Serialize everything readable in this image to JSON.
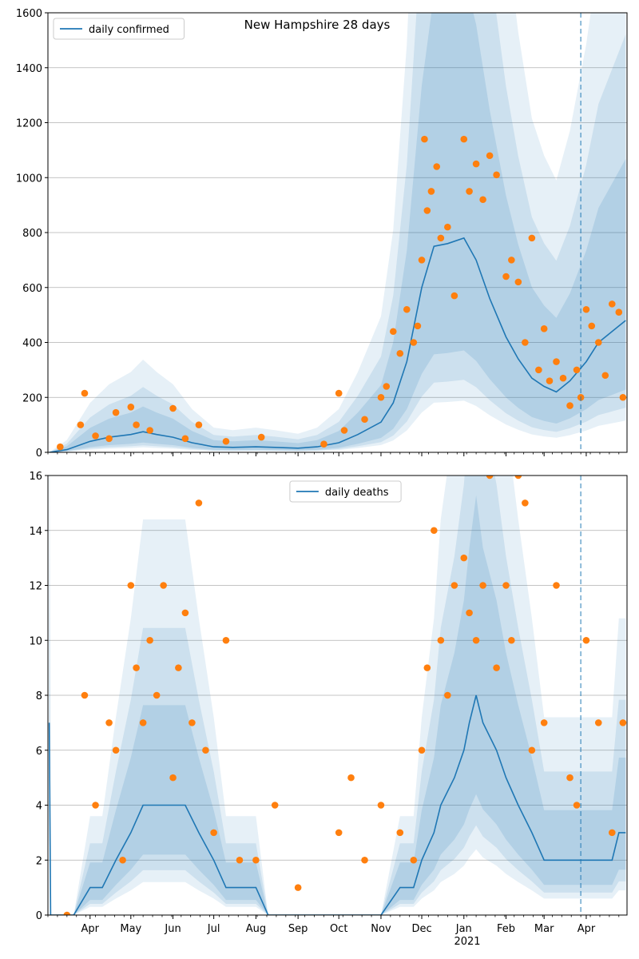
{
  "chart_data": [
    {
      "type": "line",
      "title": "New Hampshire 28 days",
      "xlabel": "",
      "ylabel": "",
      "ylim": [
        0,
        1600
      ],
      "yticks": [
        0,
        200,
        400,
        600,
        800,
        1000,
        1200,
        1400,
        1600
      ],
      "grid": "horizontal",
      "legend": {
        "placement": "top-left",
        "entries": [
          "daily confirmed"
        ]
      },
      "series": [
        {
          "name": "daily confirmed",
          "kind": "line",
          "x": [
            "2020-03-02",
            "2020-03-15",
            "2020-04-01",
            "2020-04-15",
            "2020-05-01",
            "2020-05-10",
            "2020-05-20",
            "2020-06-01",
            "2020-06-15",
            "2020-07-01",
            "2020-07-15",
            "2020-08-01",
            "2020-08-15",
            "2020-09-01",
            "2020-09-15",
            "2020-10-01",
            "2020-10-15",
            "2020-11-01",
            "2020-11-10",
            "2020-11-20",
            "2020-12-01",
            "2020-12-10",
            "2020-12-20",
            "2021-01-01",
            "2021-01-10",
            "2021-01-20",
            "2021-02-01",
            "2021-02-10",
            "2021-02-20",
            "2021-03-01",
            "2021-03-10",
            "2021-03-20",
            "2021-04-01",
            "2021-04-10",
            "2021-04-20",
            "2021-04-30"
          ],
          "y": [
            0,
            10,
            40,
            55,
            65,
            75,
            65,
            55,
            35,
            20,
            18,
            20,
            18,
            15,
            20,
            35,
            65,
            110,
            180,
            330,
            600,
            750,
            760,
            780,
            700,
            560,
            420,
            340,
            270,
            240,
            220,
            260,
            330,
            400,
            440,
            480
          ]
        },
        {
          "name": "observed",
          "kind": "scatter",
          "x": [
            "2020-03-10",
            "2020-03-25",
            "2020-03-28",
            "2020-04-05",
            "2020-04-15",
            "2020-04-20",
            "2020-05-01",
            "2020-05-05",
            "2020-05-15",
            "2020-06-01",
            "2020-06-10",
            "2020-06-20",
            "2020-07-10",
            "2020-08-05",
            "2020-09-20",
            "2020-10-01",
            "2020-10-05",
            "2020-10-20",
            "2020-11-01",
            "2020-11-05",
            "2020-11-10",
            "2020-11-15",
            "2020-11-20",
            "2020-11-25",
            "2020-11-28",
            "2020-12-01",
            "2020-12-03",
            "2020-12-05",
            "2020-12-08",
            "2020-12-12",
            "2020-12-15",
            "2020-12-20",
            "2020-12-25",
            "2021-01-01",
            "2021-01-05",
            "2021-01-10",
            "2021-01-15",
            "2021-01-20",
            "2021-01-25",
            "2021-02-01",
            "2021-02-05",
            "2021-02-10",
            "2021-02-15",
            "2021-02-20",
            "2021-02-25",
            "2021-03-01",
            "2021-03-05",
            "2021-03-10",
            "2021-03-15",
            "2021-03-20",
            "2021-03-25",
            "2021-03-28",
            "2021-04-01",
            "2021-04-05",
            "2021-04-10",
            "2021-04-15",
            "2021-04-20",
            "2021-04-25",
            "2021-04-28"
          ],
          "y": [
            20,
            100,
            215,
            60,
            50,
            145,
            165,
            100,
            80,
            160,
            50,
            100,
            40,
            55,
            30,
            215,
            80,
            120,
            200,
            240,
            440,
            360,
            520,
            400,
            460,
            700,
            1140,
            880,
            950,
            1040,
            780,
            820,
            570,
            1140,
            950,
            1050,
            920,
            1080,
            1010,
            640,
            700,
            620,
            400,
            780,
            300,
            450,
            260,
            330,
            270,
            170,
            300,
            200,
            520,
            460,
            400,
            280,
            540,
            510,
            200
          ]
        }
      ],
      "x_ticks": [
        "Apr",
        "May",
        "Jun",
        "Jul",
        "Aug",
        "Sep",
        "Oct",
        "Nov",
        "Dec",
        "Jan",
        "Feb",
        "Mar",
        "Apr"
      ],
      "x_year_label": "2021",
      "reference_line_date": "2021-03-28"
    },
    {
      "type": "line",
      "title": "",
      "xlabel": "",
      "ylabel": "",
      "ylim": [
        0,
        16
      ],
      "yticks": [
        0,
        2,
        4,
        6,
        8,
        10,
        12,
        14,
        16
      ],
      "grid": "horizontal",
      "legend": {
        "placement": "top-center",
        "entries": [
          "daily deaths"
        ]
      },
      "series": [
        {
          "name": "daily deaths",
          "kind": "line",
          "x": [
            "2020-03-02",
            "2020-03-03",
            "2020-03-20",
            "2020-04-01",
            "2020-04-10",
            "2020-04-20",
            "2020-05-01",
            "2020-05-10",
            "2020-05-15",
            "2020-05-20",
            "2020-06-01",
            "2020-06-10",
            "2020-06-20",
            "2020-07-01",
            "2020-07-10",
            "2020-07-20",
            "2020-08-01",
            "2020-08-10",
            "2020-09-01",
            "2020-10-01",
            "2020-10-20",
            "2020-11-01",
            "2020-11-15",
            "2020-11-25",
            "2020-12-01",
            "2020-12-10",
            "2020-12-15",
            "2020-12-25",
            "2021-01-01",
            "2021-01-05",
            "2021-01-10",
            "2021-01-15",
            "2021-01-25",
            "2021-02-01",
            "2021-02-10",
            "2021-02-20",
            "2021-03-01",
            "2021-03-10",
            "2021-03-20",
            "2021-04-01",
            "2021-04-10",
            "2021-04-20",
            "2021-04-25",
            "2021-04-30"
          ],
          "y": [
            7,
            0,
            0,
            1,
            1,
            2,
            3,
            4,
            4,
            4,
            4,
            4,
            3,
            2,
            1,
            1,
            1,
            0,
            0,
            0,
            0,
            0,
            1,
            1,
            2,
            3,
            4,
            5,
            6,
            7,
            8,
            7,
            6,
            5,
            4,
            3,
            2,
            2,
            2,
            2,
            2,
            2,
            3,
            3
          ]
        },
        {
          "name": "observed",
          "kind": "scatter",
          "x": [
            "2020-03-15",
            "2020-03-28",
            "2020-04-05",
            "2020-04-15",
            "2020-04-20",
            "2020-04-25",
            "2020-05-01",
            "2020-05-05",
            "2020-05-10",
            "2020-05-15",
            "2020-05-20",
            "2020-05-25",
            "2020-06-01",
            "2020-06-05",
            "2020-06-10",
            "2020-06-15",
            "2020-06-20",
            "2020-06-25",
            "2020-07-01",
            "2020-07-10",
            "2020-07-20",
            "2020-08-01",
            "2020-08-15",
            "2020-09-01",
            "2020-10-01",
            "2020-10-10",
            "2020-10-20",
            "2020-11-01",
            "2020-11-15",
            "2020-11-25",
            "2020-12-01",
            "2020-12-05",
            "2020-12-10",
            "2020-12-15",
            "2020-12-20",
            "2020-12-25",
            "2021-01-01",
            "2021-01-05",
            "2021-01-10",
            "2021-01-15",
            "2021-01-20",
            "2021-01-25",
            "2021-02-01",
            "2021-02-05",
            "2021-02-10",
            "2021-02-15",
            "2021-02-20",
            "2021-03-01",
            "2021-03-10",
            "2021-03-20",
            "2021-03-25",
            "2021-04-01",
            "2021-04-10",
            "2021-04-20",
            "2021-04-28"
          ],
          "y": [
            0,
            8,
            4,
            7,
            6,
            2,
            12,
            9,
            7,
            10,
            8,
            12,
            5,
            9,
            11,
            7,
            15,
            6,
            3,
            10,
            2,
            2,
            4,
            1,
            3,
            5,
            2,
            4,
            3,
            2,
            6,
            9,
            14,
            10,
            8,
            12,
            13,
            11,
            10,
            12,
            16,
            9,
            12,
            10,
            16,
            15,
            6,
            7,
            12,
            5,
            4,
            10,
            7,
            3,
            7
          ]
        }
      ],
      "x_ticks": [
        "Apr",
        "May",
        "Jun",
        "Jul",
        "Aug",
        "Sep",
        "Oct",
        "Nov",
        "Dec",
        "Jan",
        "Feb",
        "Mar",
        "Apr"
      ],
      "x_year_label": "2021",
      "reference_line_date": "2021-03-28"
    }
  ],
  "colors": {
    "line": "#1f77b4",
    "points": "#ff7f0e",
    "band": "#1f77b4",
    "grid": "#b0b0b0"
  }
}
